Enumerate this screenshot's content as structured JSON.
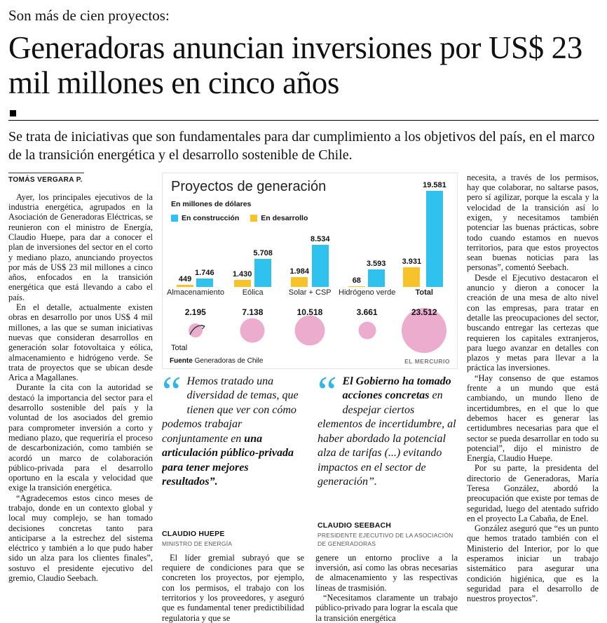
{
  "kicker": "Son más de cien proyectos:",
  "headline": "Generadoras anuncian inversiones por US$ 23 mil millones en cinco años",
  "subhead": "Se trata de iniciativas que son fundamentales para dar cumplimiento a los objetivos del país, en el marco de la transición energética y el desarrollo sostenible de Chile.",
  "byline": "TOMÁS VERGARA P.",
  "icons": {
    "quote_mark": "“"
  },
  "left_column": [
    "Ayer, los principales ejecutivos de la industria energética, agrupados en la Asociación de Generadoras Eléctricas, se reunieron con el ministro de Energía, Claudio Huepe, para dar a conocer el plan de inversiones del sector en el corto y mediano plazo, anunciando proyectos por más de US$ 23 mil millones a cinco años, enfocados en la transición energética que está llevando a cabo el país.",
    "En el detalle, actualmente existen obras en desarrollo por unos US$ 4 mil millones, a las que se suman iniciativas nuevas que consideran desarrollos en generación solar fotovoltaica y eólica, almacenamiento e hidrógeno verde. Se trata de proyectos que se ubican desde Arica a Magallanes.",
    "Durante la cita con la autoridad se destacó la importancia del sector para el desarrollo sostenible del país y la voluntad de los asociados del gremio para comprometer inversión a corto y mediano plazo, que requeriría el proceso de descarbonización, como también se acordó un marco de colaboración público-privada para el desarrollo oportuno en la escala y velocidad que exige la transición energética.",
    "“Agradecemos estos cinco meses de trabajo, donde en un contexto global y local muy complejo, se han tomado decisiones concretas tanto para anticiparse a la estrechez del sistema eléctrico y también a lo que pudo haber sido un alza para los clientes finales”, sostuvo el presidente ejecutivo del gremio, Claudio Seebach."
  ],
  "right_column": [
    "necesita, a través de los permisos, hay que colaborar, no saltarse pasos, pero sí agilizar, porque la escala y la velocidad de la transición así lo exigen, y necesitamos también potenciar las buenas prácticas, sobre todo cuando estamos en nuevos territorios, para que estos proyectos sean buenas noticias para las personas”, comentó Seebach.",
    "Desde el Ejecutivo destacaron el anuncio y dieron a conocer la creación de una mesa de alto nivel con las empresas, para tratar en detalle las preocupaciones del sector, buscando entregar las certezas que requieren los capitales extranjeros, para luego avanzar en detalles con plazos y metas para llevar a la práctica las inversiones.",
    "“Hay consenso de que estamos frente a un mundo que está cambiando, un mundo lleno de incertidumbres, en el que lo que debemos hacer es generar las certidumbres necesarias para que el sector se pueda desarrollar en todo su potencial”, dijo el ministro de Energía, Claudio Huepe.",
    "Por su parte, la presidenta del directorio de Generadoras, María Teresa González, abordó la preocupación que existe por temas de seguridad, luego del atentado sufrido en el proyecto La Cabaña, de Enel.",
    "González aseguró que “es un punto que hemos tratado también con el Ministerio del Interior, por lo que esperamos iniciar un trabajo sistemático para asegurar una condición higiénica, que es la seguridad para el desarrollo de nuestros proyectos”."
  ],
  "mid_text": {
    "col1": [
      "El líder gremial subrayó que se requiere de condiciones para que se concreten los proyectos, por ejemplo, con los permisos, el trabajo con los territorios y los proveedores, y aseguró que es fundamental tener predictibilidad regulatoria y que se"
    ],
    "col2": [
      "genere un entorno proclive a la inversión, así como las obras necesarias de almacenamiento y las respectivas líneas de trasmisión.",
      "“Necesitamos claramente un trabajo público-privado para lograr la escala que la transición energética"
    ]
  },
  "quotes": [
    {
      "part_regular": "Hemos tratado una diversidad de temas, que tienen que ver con cómo podemos trabajar conjuntamente en ",
      "part_bold": "una articulación público-privada para tener mejores resultados”.",
      "author": "CLAUDIO HUEPE",
      "role": "MINISTRO DE ENERGÍA"
    },
    {
      "part_bold": "El Gobierno ha tomado acciones concretas ",
      "part_regular": "en despejar ciertos elementos de incertidumbre, al haber abordado la potencial alza de tarifas (...) evitando impactos en el sector de generación”.",
      "author": "CLAUDIO SEEBACH",
      "role": "PRESIDENTE EJECUTIVO DE LA ASOCIACIÓN DE GENERADORAS"
    }
  ],
  "chart_data": {
    "type": "bar",
    "title": "Proyectos de generación",
    "subtitle": "En millones de dólares",
    "categories": [
      "Almacenamiento",
      "Eólica",
      "Solar + CSP",
      "Hidrógeno verde",
      "Total"
    ],
    "series": [
      {
        "name": "En construcción",
        "color": "#2fc2ef",
        "values": [
          1746,
          5708,
          8534,
          3593,
          19581
        ]
      },
      {
        "name": "En desarrollo",
        "color": "#f8c32a",
        "values": [
          449,
          1430,
          1984,
          68,
          3931
        ]
      }
    ],
    "totals": {
      "label": "Total",
      "color": "#ecaccd",
      "values": [
        2195,
        7138,
        10518,
        3661,
        23512
      ]
    },
    "source_label": "Fuente",
    "source": "Generadoras de Chile",
    "credit": "EL MERCURIO",
    "ylim": [
      0,
      20000
    ],
    "grid": false,
    "legend_position": "top-left"
  }
}
